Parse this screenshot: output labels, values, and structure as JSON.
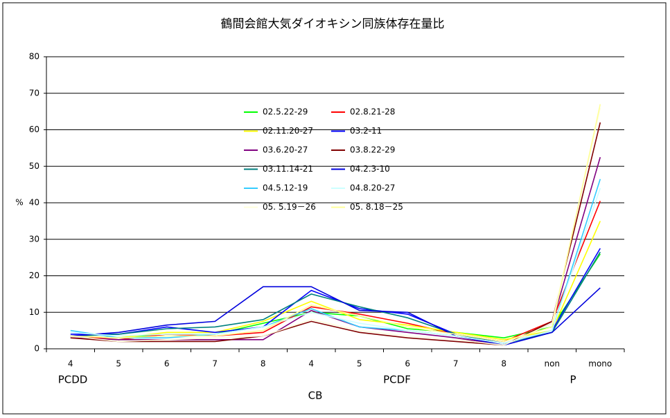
{
  "chart_data": {
    "type": "line",
    "title": "鶴間会館大気ダイオキシン同族体存在量比",
    "categories": [
      "4",
      "5",
      "6",
      "7",
      "8",
      "4",
      "5",
      "6",
      "7",
      "8",
      "non",
      "mono"
    ],
    "category_groups": [
      "PCDD",
      "PCDF",
      "P"
    ],
    "x_label": "CB",
    "y_label": "%",
    "ylim": [
      0,
      80
    ],
    "yticks": [
      0,
      10,
      20,
      30,
      40,
      50,
      60,
      70,
      80
    ],
    "grid": true,
    "series": [
      {
        "name": "02.5.22-29",
        "color": "#00ff00",
        "values": [
          3.5,
          3,
          4,
          4,
          7,
          10,
          9,
          5.5,
          4.5,
          3,
          6,
          26
        ]
      },
      {
        "name": "02.8.21-28",
        "color": "#ff0000",
        "values": [
          3.5,
          2.5,
          4,
          3.5,
          4.5,
          11.5,
          9.5,
          7,
          4,
          2,
          7.5,
          40.5
        ]
      },
      {
        "name": "02.11.20-27",
        "color": "#ffff00",
        "values": [
          3.5,
          3,
          4.5,
          4.5,
          7.5,
          13,
          8,
          6.5,
          4.5,
          2.5,
          5,
          35
        ]
      },
      {
        "name": "03.2-11",
        "color": "#0000ff",
        "values": [
          4,
          4,
          6,
          4.5,
          6,
          16,
          11,
          9.5,
          4,
          1.5,
          5,
          27.5
        ]
      },
      {
        "name": "03.6.20-27",
        "color": "#800080",
        "values": [
          3,
          2.5,
          2.5,
          2.5,
          2.5,
          10.5,
          6,
          4.5,
          3,
          1,
          7,
          52.5
        ]
      },
      {
        "name": "03.8.22-29",
        "color": "#800000",
        "values": [
          3,
          2,
          2,
          2,
          3.5,
          7.5,
          4.5,
          3,
          2,
          1,
          7.5,
          62
        ]
      },
      {
        "name": "03.11.14-21",
        "color": "#008080",
        "values": [
          3.5,
          4,
          5.5,
          6,
          8,
          15,
          11.5,
          8.5,
          4,
          1.5,
          4.5,
          26.5
        ]
      },
      {
        "name": "04.2.3-10",
        "color": "#0000dd",
        "values": [
          3.5,
          4.5,
          6.5,
          7.5,
          17,
          17,
          10.5,
          10,
          3.5,
          1,
          4.5,
          16.7
        ]
      },
      {
        "name": "04.5.12-19",
        "color": "#33ccff",
        "values": [
          5,
          3,
          3,
          4,
          6,
          11,
          6,
          5,
          3.5,
          1.5,
          5,
          46.5
        ]
      },
      {
        "name": "04.8.20-27",
        "color": "#ccffff",
        "values": [
          4.5,
          3.5,
          4,
          4,
          6,
          10,
          7,
          5,
          3.5,
          1.5,
          5,
          44
        ]
      },
      {
        "name": "05. 5.19－26",
        "color": "#ffffdd",
        "values": [
          3.5,
          2,
          2.5,
          3,
          3.5,
          8,
          5,
          3.5,
          2.5,
          1,
          7,
          66
        ]
      },
      {
        "name": "05. 8.18－25",
        "color": "#ffff99",
        "values": [
          3.5,
          3,
          3.5,
          3.5,
          5,
          12,
          9,
          6,
          4,
          2,
          6,
          67
        ]
      }
    ]
  }
}
